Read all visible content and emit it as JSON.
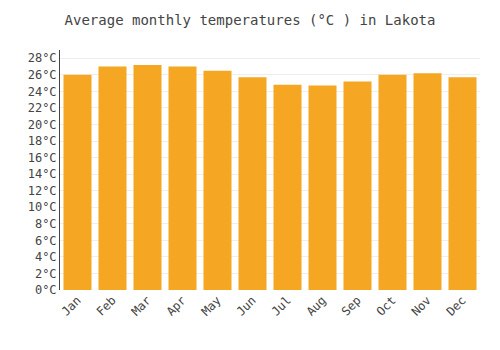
{
  "chart_data": {
    "type": "bar",
    "title": "Average monthly temperatures (°C ) in Lakota",
    "categories": [
      "Jan",
      "Feb",
      "Mar",
      "Apr",
      "May",
      "Jun",
      "Jul",
      "Aug",
      "Sep",
      "Oct",
      "Nov",
      "Dec"
    ],
    "values": [
      26.0,
      27.0,
      27.2,
      27.0,
      26.5,
      25.7,
      24.8,
      24.7,
      25.2,
      26.0,
      26.2,
      25.7
    ],
    "color": "#F5A623",
    "ylim": [
      0,
      29
    ],
    "yticks": [
      {
        "value": 0,
        "label": "0°C"
      },
      {
        "value": 2,
        "label": "2°C"
      },
      {
        "value": 4,
        "label": "4°C"
      },
      {
        "value": 6,
        "label": "6°C"
      },
      {
        "value": 8,
        "label": "8°C"
      },
      {
        "value": 10,
        "label": "10°C"
      },
      {
        "value": 12,
        "label": "12°C"
      },
      {
        "value": 14,
        "label": "14°C"
      },
      {
        "value": 16,
        "label": "16°C"
      },
      {
        "value": 18,
        "label": "18°C"
      },
      {
        "value": 20,
        "label": "20°C"
      },
      {
        "value": 22,
        "label": "22°C"
      },
      {
        "value": 24,
        "label": "24°C"
      },
      {
        "value": 26,
        "label": "26°C"
      },
      {
        "value": 28,
        "label": "28°C"
      }
    ],
    "grid": true
  }
}
